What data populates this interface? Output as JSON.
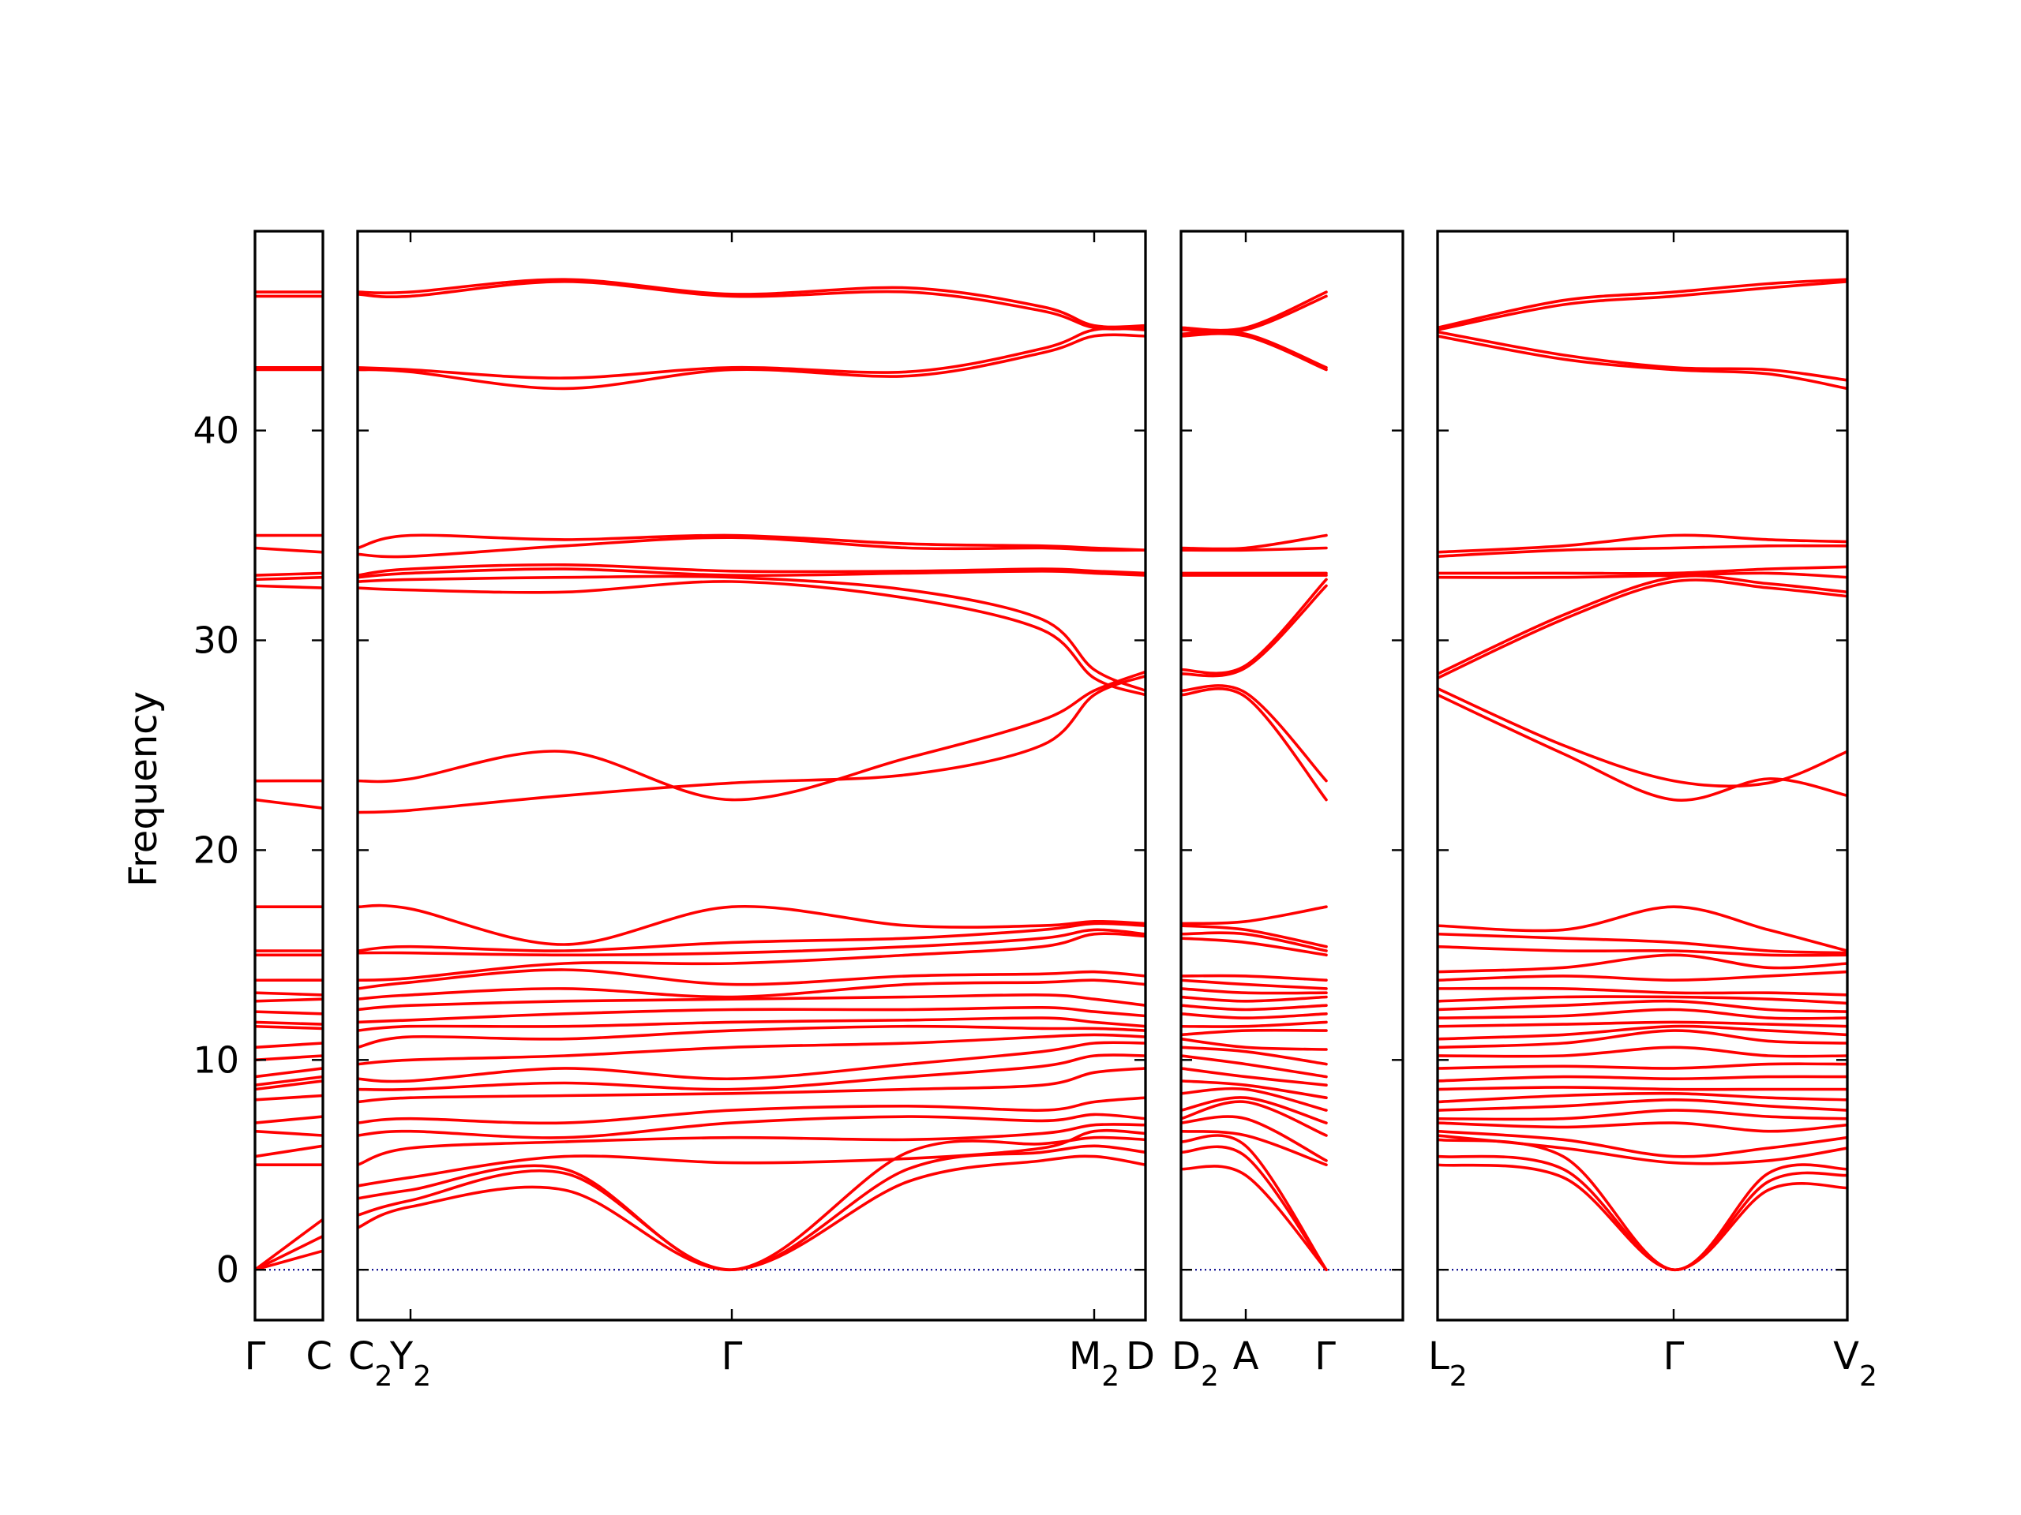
{
  "chart_data": {
    "type": "line",
    "ylabel": "Frequency",
    "ylim": [
      -2.4,
      49.5
    ],
    "yticks": [
      0,
      10,
      20,
      30,
      40
    ],
    "band_color": "#ff0000",
    "zero_line_color": "#00008b",
    "panels": [
      {
        "id": "p1",
        "segments": [
          {
            "from": "Γ",
            "to": "C"
          }
        ],
        "bands": [
          [
            0,
            0.9
          ],
          [
            0,
            1.6
          ],
          [
            0,
            2.4
          ],
          [
            5.0,
            5.0
          ],
          [
            5.4,
            5.9
          ],
          [
            6.6,
            6.4
          ],
          [
            7.0,
            7.3
          ],
          [
            8.1,
            8.3
          ],
          [
            8.6,
            9.0
          ],
          [
            8.8,
            9.2
          ],
          [
            9.2,
            9.6
          ],
          [
            10.0,
            10.2
          ],
          [
            10.6,
            10.8
          ],
          [
            11.6,
            11.5
          ],
          [
            11.8,
            11.7
          ],
          [
            12.3,
            12.2
          ],
          [
            12.8,
            12.9
          ],
          [
            13.2,
            13.1
          ],
          [
            13.8,
            13.8
          ],
          [
            15.0,
            15.0
          ],
          [
            15.2,
            15.2
          ],
          [
            17.3,
            17.3
          ],
          [
            22.4,
            22.0
          ],
          [
            23.3,
            23.3
          ],
          [
            32.6,
            32.5
          ],
          [
            32.9,
            33.0
          ],
          [
            33.1,
            33.2
          ],
          [
            34.4,
            34.2
          ],
          [
            35.0,
            35.0
          ],
          [
            42.9,
            42.9
          ],
          [
            43.0,
            43.0
          ],
          [
            46.4,
            46.4
          ],
          [
            46.6,
            46.6
          ]
        ]
      },
      {
        "id": "p2",
        "segments": [
          {
            "from": "C2",
            "to": "Y2"
          },
          {
            "from": "Y2",
            "to": "Γ"
          },
          {
            "from": "Γ",
            "to": "M2"
          },
          {
            "from": "M2",
            "to": "D"
          }
        ],
        "bands": [
          [
            2.0,
            3.0,
            3.8,
            0,
            4.2,
            5.2,
            5.4,
            5.0
          ],
          [
            2.6,
            3.3,
            4.6,
            0,
            4.8,
            5.6,
            5.9,
            5.6
          ],
          [
            3.4,
            3.8,
            4.8,
            0,
            5.6,
            6.0,
            6.3,
            6.2
          ],
          [
            4.0,
            4.4,
            5.4,
            5.1,
            5.3,
            5.8,
            6.6,
            6.5
          ],
          [
            5.0,
            5.8,
            6.1,
            6.3,
            6.2,
            6.5,
            6.9,
            6.9
          ],
          [
            6.4,
            6.6,
            6.3,
            7.0,
            7.3,
            7.1,
            7.4,
            7.2
          ],
          [
            7.0,
            7.2,
            7.0,
            7.6,
            7.8,
            7.6,
            8.0,
            8.2
          ],
          [
            8.0,
            8.2,
            8.3,
            8.4,
            8.6,
            8.8,
            9.4,
            9.6
          ],
          [
            8.6,
            8.6,
            8.9,
            8.6,
            9.2,
            9.7,
            10.2,
            10.2
          ],
          [
            9.1,
            9.0,
            9.6,
            9.1,
            9.8,
            10.4,
            10.8,
            10.8
          ],
          [
            9.8,
            10.0,
            10.2,
            10.6,
            10.8,
            11.1,
            11.2,
            11.1
          ],
          [
            10.6,
            11.1,
            11.0,
            11.4,
            11.6,
            11.5,
            11.5,
            11.4
          ],
          [
            11.4,
            11.6,
            11.6,
            11.8,
            11.9,
            12.0,
            11.8,
            11.6
          ],
          [
            11.8,
            11.9,
            12.2,
            12.4,
            12.4,
            12.5,
            12.3,
            12.1
          ],
          [
            12.4,
            12.6,
            12.8,
            12.9,
            13.0,
            13.1,
            12.9,
            12.6
          ],
          [
            12.9,
            13.1,
            13.4,
            13.0,
            13.6,
            13.7,
            13.8,
            13.6
          ],
          [
            13.4,
            13.7,
            14.3,
            13.6,
            14.0,
            14.1,
            14.2,
            14.0
          ],
          [
            13.8,
            13.9,
            14.6,
            14.6,
            15.0,
            15.4,
            16.0,
            15.9
          ],
          [
            15.1,
            15.1,
            15.0,
            15.1,
            15.4,
            15.8,
            16.2,
            16.0
          ],
          [
            15.2,
            15.4,
            15.2,
            15.6,
            15.8,
            16.2,
            16.5,
            16.4
          ],
          [
            17.3,
            17.2,
            15.5,
            17.3,
            16.4,
            16.4,
            16.6,
            16.5
          ],
          [
            21.8,
            21.9,
            22.6,
            23.2,
            23.6,
            25.0,
            27.4,
            28.3
          ],
          [
            23.3,
            23.4,
            24.7,
            22.4,
            24.4,
            26.2,
            27.6,
            28.5
          ],
          [
            32.5,
            32.4,
            32.3,
            32.8,
            32.0,
            30.5,
            28.2,
            27.4
          ],
          [
            32.8,
            32.9,
            33.0,
            33.0,
            32.4,
            31.0,
            28.6,
            27.6
          ],
          [
            33.0,
            33.2,
            33.4,
            33.1,
            33.2,
            33.3,
            33.2,
            33.1
          ],
          [
            33.1,
            33.4,
            33.6,
            33.3,
            33.3,
            33.4,
            33.3,
            33.2
          ],
          [
            34.1,
            34.0,
            34.5,
            34.9,
            34.4,
            34.4,
            34.3,
            34.3
          ],
          [
            34.4,
            35.0,
            34.8,
            35.0,
            34.6,
            34.5,
            34.4,
            34.3
          ],
          [
            42.9,
            42.8,
            42.0,
            42.9,
            42.6,
            43.7,
            44.5,
            44.5
          ],
          [
            43.0,
            42.9,
            42.5,
            43.0,
            42.8,
            43.9,
            44.8,
            44.8
          ],
          [
            46.5,
            46.4,
            47.1,
            46.4,
            46.6,
            45.7,
            44.9,
            44.9
          ],
          [
            46.6,
            46.6,
            47.2,
            46.5,
            46.8,
            45.9,
            45.0,
            45.0
          ]
        ]
      },
      {
        "id": "p3",
        "segments": [
          {
            "from": "D2",
            "to": "A"
          },
          {
            "from": "A",
            "to": "Γ"
          }
        ],
        "bands": [
          [
            4.8,
            4.5,
            0
          ],
          [
            5.6,
            5.4,
            0
          ],
          [
            6.1,
            5.9,
            0
          ],
          [
            6.6,
            6.4,
            5.0
          ],
          [
            7.0,
            7.2,
            5.2
          ],
          [
            7.2,
            8.0,
            6.4
          ],
          [
            7.6,
            8.2,
            7.0
          ],
          [
            8.4,
            8.6,
            7.6
          ],
          [
            9.0,
            8.8,
            8.2
          ],
          [
            9.6,
            9.2,
            8.8
          ],
          [
            10.2,
            9.8,
            9.2
          ],
          [
            10.6,
            10.4,
            9.8
          ],
          [
            11.0,
            10.6,
            10.5
          ],
          [
            11.2,
            11.4,
            11.4
          ],
          [
            11.6,
            11.6,
            11.8
          ],
          [
            12.2,
            12.0,
            12.2
          ],
          [
            12.6,
            12.4,
            12.6
          ],
          [
            13.0,
            12.8,
            13.0
          ],
          [
            13.4,
            13.2,
            13.2
          ],
          [
            13.8,
            13.6,
            13.4
          ],
          [
            14.0,
            14.0,
            13.8
          ],
          [
            15.8,
            15.6,
            15.0
          ],
          [
            16.0,
            16.0,
            15.2
          ],
          [
            16.4,
            16.2,
            15.4
          ],
          [
            16.5,
            16.6,
            17.3
          ],
          [
            27.4,
            27.3,
            22.4
          ],
          [
            27.6,
            27.5,
            23.3
          ],
          [
            28.4,
            28.7,
            32.6
          ],
          [
            28.6,
            28.8,
            32.9
          ],
          [
            33.1,
            33.1,
            33.1
          ],
          [
            33.2,
            33.2,
            33.2
          ],
          [
            34.3,
            34.3,
            34.4
          ],
          [
            34.4,
            34.4,
            35.0
          ],
          [
            44.5,
            44.5,
            42.9
          ],
          [
            44.6,
            44.6,
            43.0
          ],
          [
            44.8,
            44.8,
            46.4
          ],
          [
            44.9,
            44.9,
            46.6
          ]
        ]
      },
      {
        "id": "p4",
        "segments": [
          {
            "from": "L2",
            "to": "Γ"
          },
          {
            "from": "Γ",
            "to": "V2"
          }
        ],
        "bands": [
          [
            5.0,
            4.4,
            0,
            3.8,
            3.9
          ],
          [
            5.4,
            4.8,
            0,
            4.2,
            4.5
          ],
          [
            6.2,
            5.4,
            0,
            4.6,
            4.8
          ],
          [
            6.4,
            5.8,
            5.1,
            5.2,
            5.8
          ],
          [
            6.6,
            6.2,
            5.4,
            5.8,
            6.3
          ],
          [
            7.0,
            6.8,
            7.0,
            6.6,
            6.9
          ],
          [
            7.2,
            7.2,
            7.6,
            7.3,
            7.2
          ],
          [
            7.6,
            7.8,
            8.1,
            7.8,
            7.6
          ],
          [
            8.0,
            8.3,
            8.4,
            8.2,
            8.1
          ],
          [
            8.6,
            8.7,
            8.6,
            8.6,
            8.6
          ],
          [
            9.0,
            9.2,
            9.1,
            9.2,
            9.2
          ],
          [
            9.6,
            9.7,
            9.6,
            9.8,
            9.8
          ],
          [
            10.2,
            10.2,
            10.6,
            10.2,
            10.2
          ],
          [
            10.6,
            10.8,
            11.4,
            10.9,
            10.8
          ],
          [
            11.0,
            11.2,
            11.6,
            11.4,
            11.2
          ],
          [
            11.6,
            11.7,
            11.8,
            11.7,
            11.6
          ],
          [
            12.0,
            12.1,
            12.4,
            12.0,
            12.0
          ],
          [
            12.4,
            12.6,
            12.8,
            12.4,
            12.3
          ],
          [
            12.8,
            13.0,
            13.0,
            12.9,
            12.7
          ],
          [
            13.4,
            13.4,
            13.2,
            13.2,
            13.1
          ],
          [
            13.8,
            14.0,
            13.8,
            14.0,
            14.2
          ],
          [
            14.2,
            14.4,
            15.0,
            14.4,
            14.6
          ],
          [
            15.4,
            15.2,
            15.2,
            15.0,
            15.0
          ],
          [
            16.0,
            15.8,
            15.6,
            15.2,
            15.1
          ],
          [
            16.4,
            16.2,
            17.3,
            16.2,
            15.2
          ],
          [
            27.4,
            24.6,
            22.4,
            23.4,
            22.6
          ],
          [
            27.7,
            25.0,
            23.3,
            23.2,
            24.7
          ],
          [
            28.2,
            31.0,
            32.8,
            32.5,
            32.1
          ],
          [
            28.4,
            31.2,
            33.0,
            32.7,
            32.3
          ],
          [
            33.0,
            33.0,
            33.1,
            33.2,
            33.0
          ],
          [
            33.2,
            33.2,
            33.2,
            33.4,
            33.5
          ],
          [
            34.0,
            34.3,
            34.4,
            34.5,
            34.5
          ],
          [
            34.2,
            34.5,
            35.0,
            34.8,
            34.7
          ],
          [
            44.5,
            43.4,
            42.9,
            42.7,
            42.0
          ],
          [
            44.7,
            43.6,
            43.0,
            42.9,
            42.4
          ],
          [
            44.8,
            46.0,
            46.4,
            46.8,
            47.1
          ],
          [
            44.9,
            46.2,
            46.6,
            47.0,
            47.2
          ]
        ]
      }
    ]
  }
}
